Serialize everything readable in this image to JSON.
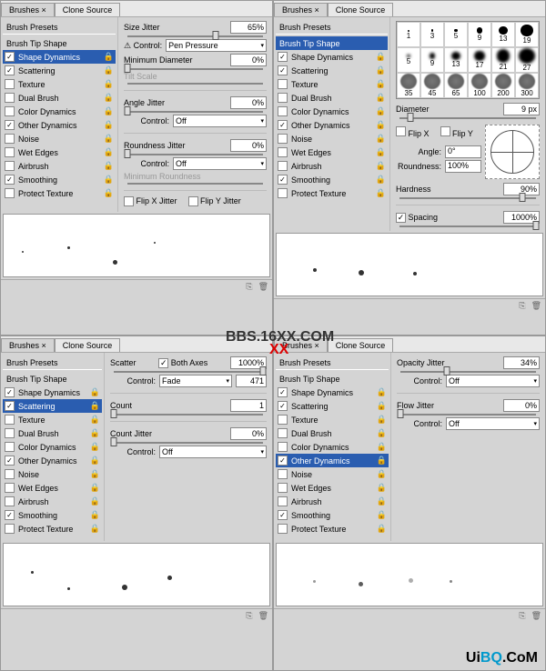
{
  "tabs": {
    "brushes": "Brushes ×",
    "clone": "Clone Source"
  },
  "sidebar_head": "Brush Presets",
  "options": {
    "tip": "Brush Tip Shape",
    "shape": "Shape Dynamics",
    "scatter": "Scattering",
    "texture": "Texture",
    "dual": "Dual Brush",
    "color": "Color Dynamics",
    "other": "Other Dynamics",
    "noise": "Noise",
    "wet": "Wet Edges",
    "air": "Airbrush",
    "smooth": "Smoothing",
    "protect": "Protect Texture"
  },
  "check": "✓",
  "p1": {
    "selected": "shape",
    "size_jitter": {
      "label": "Size Jitter",
      "value": "65%",
      "slider": 65
    },
    "control_pen": {
      "label": "⚠ Control:",
      "value": "Pen Pressure"
    },
    "min_diam": {
      "label": "Minimum Diameter",
      "value": "0%",
      "slider": 0
    },
    "tilt": "Tilt Scale",
    "angle_jitter": {
      "label": "Angle Jitter",
      "value": "0%",
      "slider": 0
    },
    "control_off": {
      "label": "Control:",
      "value": "Off"
    },
    "round_jitter": {
      "label": "Roundness Jitter",
      "value": "0%",
      "slider": 0
    },
    "control_off2": {
      "label": "Control:",
      "value": "Off"
    },
    "min_round": "Minimum Roundness",
    "flipx": "Flip X Jitter",
    "flipy": "Flip Y Jitter"
  },
  "p2": {
    "selected": "tip",
    "brush_sizes": [
      1,
      3,
      5,
      9,
      13,
      19,
      5,
      9,
      13,
      17,
      21,
      27,
      35,
      45,
      65,
      100,
      200,
      300
    ],
    "diameter": {
      "label": "Diameter",
      "value": "9 px",
      "slider": 8
    },
    "flipx": "Flip X",
    "flipy": "Flip Y",
    "angle": {
      "label": "Angle:",
      "value": "0°"
    },
    "roundness": {
      "label": "Roundness:",
      "value": "100%"
    },
    "hardness": {
      "label": "Hardness",
      "value": "90%",
      "slider": 90
    },
    "spacing": {
      "label": "Spacing",
      "checked": true,
      "value": "1000%",
      "slider": 100
    }
  },
  "p3": {
    "selected": "scatter",
    "scatter": {
      "label": "Scatter",
      "both": "Both Axes",
      "value": "1000%",
      "slider": 100
    },
    "control": {
      "label": "Control:",
      "value": "Fade",
      "num": "471"
    },
    "count": {
      "label": "Count",
      "value": "1",
      "slider": 0
    },
    "count_jitter": {
      "label": "Count Jitter",
      "value": "0%",
      "slider": 0
    },
    "control2": {
      "label": "Control:",
      "value": "Off"
    }
  },
  "p4": {
    "selected": "other",
    "opacity": {
      "label": "Opacity Jitter",
      "value": "34%",
      "slider": 34
    },
    "control": {
      "label": "Control:",
      "value": "Off"
    },
    "flow": {
      "label": "Flow Jitter",
      "value": "0%",
      "slider": 0
    },
    "control2": {
      "label": "Control:",
      "value": "Off"
    }
  },
  "watermark_text": "BBS.16XX.COM",
  "logo": {
    "ui": "Ui",
    "bq": "BQ",
    "com": ".CoM"
  }
}
